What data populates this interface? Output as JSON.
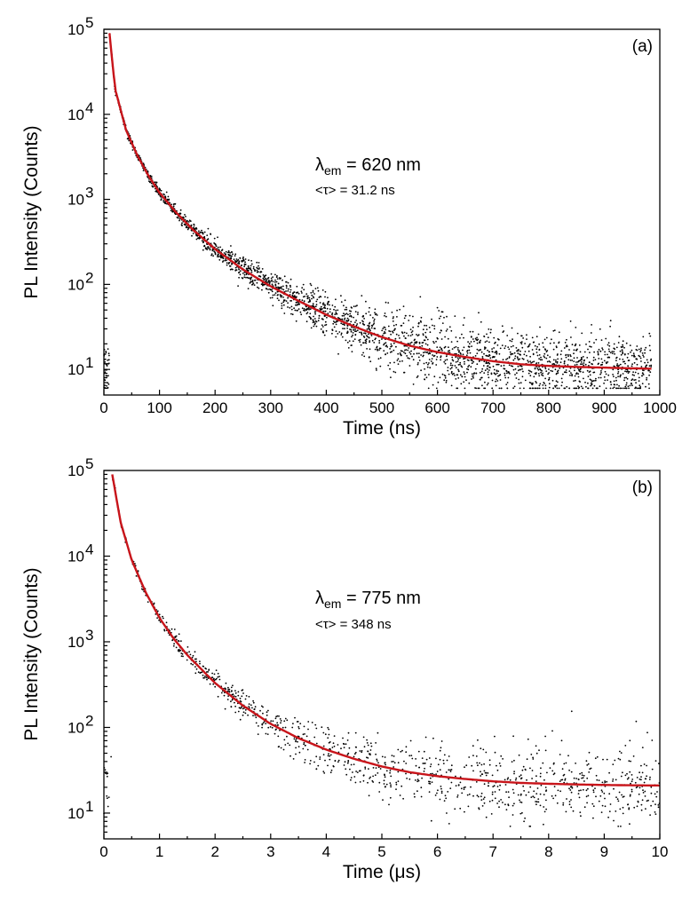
{
  "chart_data": [
    {
      "type": "scatter",
      "panel_label": "(a)",
      "xlabel": "Time (ns)",
      "ylabel": "PL Intensity (Counts)",
      "xlim": [
        0,
        1000
      ],
      "ylim": [
        5,
        100000
      ],
      "y_scale": "log",
      "x_ticks": [
        0,
        100,
        200,
        300,
        400,
        500,
        600,
        700,
        800,
        900,
        1000
      ],
      "y_ticks": [
        {
          "base": "10",
          "exp": "1",
          "value": 10
        },
        {
          "base": "10",
          "exp": "2",
          "value": 100
        },
        {
          "base": "10",
          "exp": "3",
          "value": 1000
        },
        {
          "base": "10",
          "exp": "4",
          "value": 10000
        },
        {
          "base": "10",
          "exp": "5",
          "value": 100000
        }
      ],
      "annotation": {
        "lambda_symbol": "λ",
        "lambda_sub": "em",
        "lambda_value": " = 620 nm",
        "tau_text": "<τ> = 31.2 ns"
      },
      "fit": {
        "color": "#c8141a",
        "x": [
          10,
          20,
          40,
          60,
          80,
          100,
          130,
          160,
          200,
          250,
          300,
          350,
          400,
          450,
          500,
          550,
          600,
          650,
          700,
          750,
          800,
          850,
          900,
          950,
          985
        ],
        "y": [
          90000,
          20000,
          6500,
          3300,
          1900,
          1200,
          700,
          440,
          260,
          150,
          95,
          64,
          44,
          32,
          24,
          19,
          16,
          14,
          12.5,
          11.5,
          11,
          10.7,
          10.5,
          10.3,
          10.2
        ]
      },
      "series": [
        {
          "marker": "dot",
          "color": "#000000",
          "x": [
            10,
            20,
            40,
            60,
            80,
            100,
            130,
            160,
            200,
            250,
            300,
            350,
            400,
            450,
            500,
            550,
            600,
            650,
            700,
            750,
            800,
            850,
            900,
            950,
            985
          ],
          "y": [
            90000,
            20000,
            6500,
            3300,
            1900,
            1200,
            700,
            440,
            260,
            150,
            95,
            64,
            44,
            32,
            24,
            19,
            16,
            14,
            12.5,
            11.5,
            11,
            10.7,
            10.5,
            10.3,
            10.2
          ],
          "noise": 0.55,
          "tail_floor": 6
        }
      ]
    },
    {
      "type": "scatter",
      "panel_label": "(b)",
      "xlabel": "Time (μs)",
      "ylabel": "PL Intensity (Counts)",
      "xlim": [
        0,
        10
      ],
      "ylim": [
        5,
        100000
      ],
      "y_scale": "log",
      "x_ticks": [
        0,
        1,
        2,
        3,
        4,
        5,
        6,
        7,
        8,
        9,
        10
      ],
      "y_ticks": [
        {
          "base": "10",
          "exp": "1",
          "value": 10
        },
        {
          "base": "10",
          "exp": "2",
          "value": 100
        },
        {
          "base": "10",
          "exp": "3",
          "value": 1000
        },
        {
          "base": "10",
          "exp": "4",
          "value": 10000
        },
        {
          "base": "10",
          "exp": "5",
          "value": 100000
        }
      ],
      "annotation": {
        "lambda_symbol": "λ",
        "lambda_sub": "em",
        "lambda_value": " = 775 nm",
        "tau_text": "<τ> = 348 ns"
      },
      "fit": {
        "color": "#c8141a",
        "x": [
          0.15,
          0.3,
          0.5,
          0.75,
          1.0,
          1.25,
          1.5,
          2.0,
          2.5,
          3.0,
          3.5,
          4.0,
          4.5,
          5.0,
          5.5,
          6.0,
          6.5,
          7.0,
          7.5,
          8.0,
          8.5,
          9.0,
          9.5,
          10.0
        ],
        "y": [
          90000,
          25000,
          9000,
          3800,
          1900,
          1100,
          700,
          330,
          180,
          110,
          75,
          55,
          43,
          35,
          30,
          27,
          25,
          23.5,
          22.5,
          22,
          21.6,
          21.3,
          21.1,
          21
        ]
      },
      "series": [
        {
          "marker": "dot",
          "color": "#000000",
          "x": [
            0.15,
            0.3,
            0.5,
            0.75,
            1.0,
            1.25,
            1.5,
            2.0,
            2.5,
            3.0,
            3.5,
            4.0,
            4.5,
            5.0,
            5.5,
            6.0,
            6.5,
            7.0,
            7.5,
            8.0,
            8.5,
            9.0,
            9.5,
            10.0
          ],
          "y": [
            90000,
            25000,
            9000,
            3800,
            1900,
            1100,
            700,
            330,
            180,
            110,
            75,
            55,
            43,
            35,
            30,
            27,
            25,
            23.5,
            22.5,
            22,
            21.6,
            21.3,
            21.1,
            21
          ],
          "noise": 0.7,
          "tail_floor": 7
        }
      ]
    }
  ]
}
